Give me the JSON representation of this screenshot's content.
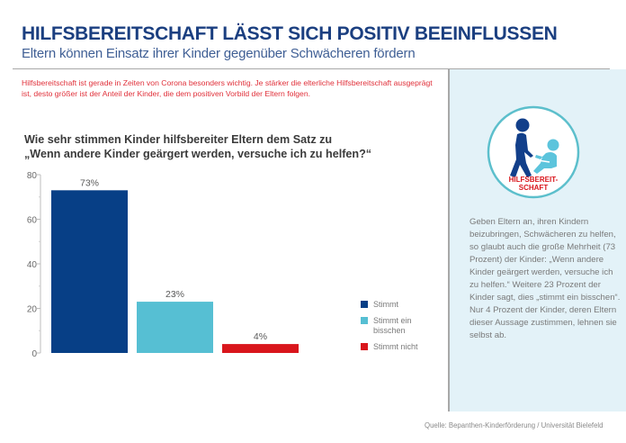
{
  "header": {
    "title": "HILFSBEREITSCHAFT LÄSST SICH POSITIV BEEINFLUSSEN",
    "subtitle": "Eltern können Einsatz ihrer Kinder gegenüber Schwächeren fördern"
  },
  "intro": "Hilfsbereitschaft ist gerade in Zeiten von Corona besonders wichtig. Je stärker die elterliche Hilfsbereitschaft ausgeprägt ist, desto größer ist der Anteil der Kinder, die dem positiven Vorbild der Eltern folgen.",
  "question": {
    "line1": "Wie sehr stimmen Kinder hilfsbereiter Eltern dem Satz zu",
    "line2": "„Wenn andere Kinder geärgert werden, versuche ich zu helfen?“"
  },
  "badge": {
    "icon": "helping-person-icon",
    "label_line1": "HILFSBEREIT-",
    "label_line2": "SCHAFT"
  },
  "panel_text": "Geben Eltern an, ihren Kindern beizubringen, Schwächeren zu helfen, so glaubt auch die große Mehrheit (73 Prozent) der Kinder: „Wenn andere Kinder geärgert werden, versuche ich zu helfen.“ Weitere 23 Prozent der Kinder sagt, dies „stimmt ein bisschen“. Nur 4 Prozent der Kinder, deren Eltern dieser Aussage zustimmen, lehnen sie selbst ab.",
  "source": "Quelle: Bepanthen-Kinderförderung / Universität Bielefeld",
  "colors": {
    "title": "#1b3f80",
    "accent_red": "#e0303a",
    "panel_bg": "#e3f2f8"
  },
  "chart_data": {
    "type": "bar",
    "title": "Wie sehr stimmen Kinder hilfsbereiter Eltern dem Satz zu „Wenn andere Kinder geärgert werden, versuche ich zu helfen?“",
    "categories": [
      "Stimmt",
      "Stimmt ein bisschen",
      "Stimmt nicht"
    ],
    "values": [
      73,
      23,
      4
    ],
    "data_labels": [
      "73%",
      "23%",
      "4%"
    ],
    "colors": [
      "#073f86",
      "#56bfd3",
      "#d9161c"
    ],
    "xlabel": "",
    "ylabel": "",
    "ylim": [
      0,
      80
    ],
    "yticks": [
      0,
      20,
      40,
      60,
      80
    ],
    "yticks_minor": [
      10,
      30,
      50,
      70
    ],
    "grid": false,
    "legend": {
      "placement": "right",
      "entries": [
        "Stimmt",
        "Stimmt ein bisschen",
        "Stimmt nicht"
      ]
    }
  }
}
